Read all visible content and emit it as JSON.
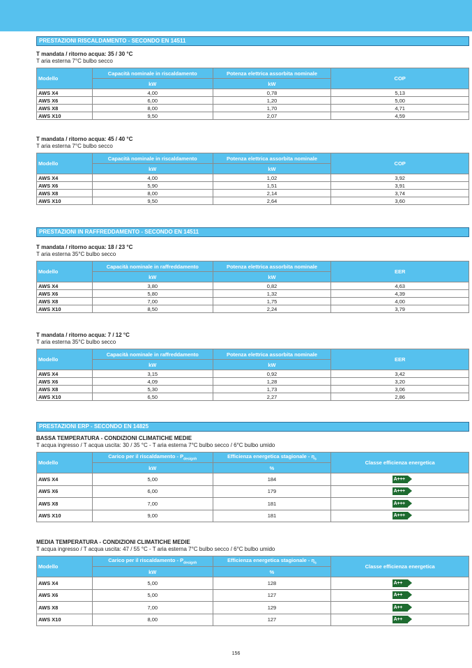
{
  "colors": {
    "accent": "#56c1ee",
    "badge": "#1e6b30"
  },
  "sections": [
    {
      "title": "PRESTAZIONI RISCALDAMENTO - SECONDO EN 14511"
    },
    {
      "title": "PRESTAZIONI IN RAFFREDDAMENTO - SECONDO EN 14511"
    },
    {
      "title": "PRESTAZIONI ERP - SECONDO EN 14825"
    }
  ],
  "tables": [
    {
      "title": "T mandata / ritorno acqua: 35 / 30 °C",
      "subtitle": "T aria esterna 7°C bulbo secco",
      "headers": [
        "Modello",
        "Capacità nominale in riscaldamento",
        "Potenza elettrica assorbita nominale",
        "COP"
      ],
      "units": [
        "kW",
        "kW"
      ],
      "rows": [
        [
          "AWS X4",
          "4,00",
          "0,78",
          "5,13"
        ],
        [
          "AWS X6",
          "6,00",
          "1,20",
          "5,00"
        ],
        [
          "AWS X8",
          "8,00",
          "1,70",
          "4,71"
        ],
        [
          "AWS X10",
          "9,50",
          "2,07",
          "4,59"
        ]
      ]
    },
    {
      "title": "T mandata / ritorno acqua: 45 / 40 °C",
      "subtitle": "T aria esterna 7°C bulbo secco",
      "headers": [
        "Modello",
        "Capacità nominale in riscaldamento",
        "Potenza elettrica assorbita nominale",
        "COP"
      ],
      "units": [
        "kW",
        "kW"
      ],
      "rows": [
        [
          "AWS X4",
          "4,00",
          "1,02",
          "3,92"
        ],
        [
          "AWS X6",
          "5,90",
          "1,51",
          "3,91"
        ],
        [
          "AWS X8",
          "8,00",
          "2,14",
          "3,74"
        ],
        [
          "AWS X10",
          "9,50",
          "2,64",
          "3,60"
        ]
      ]
    },
    {
      "title": "T mandata / ritorno acqua: 18 / 23 °C",
      "subtitle": "T aria esterna 35°C bulbo secco",
      "headers": [
        "Modello",
        "Capacità nominale in raffreddamento",
        "Potenza elettrica assorbita nominale",
        "EER"
      ],
      "units": [
        "kW",
        "kW"
      ],
      "rows": [
        [
          "AWS X4",
          "3,80",
          "0,82",
          "4,63"
        ],
        [
          "AWS X6",
          "5,80",
          "1,32",
          "4,39"
        ],
        [
          "AWS X8",
          "7,00",
          "1,75",
          "4,00"
        ],
        [
          "AWS X10",
          "8,50",
          "2,24",
          "3,79"
        ]
      ]
    },
    {
      "title": "T mandata / ritorno acqua: 7 / 12 °C",
      "subtitle": "T aria esterna 35°C bulbo secco",
      "headers": [
        "Modello",
        "Capacità nominale in raffreddamento",
        "Potenza elettrica assorbita nominale",
        "EER"
      ],
      "units": [
        "kW",
        "kW"
      ],
      "rows": [
        [
          "AWS X4",
          "3,15",
          "0,92",
          "3,42"
        ],
        [
          "AWS X6",
          "4,09",
          "1,28",
          "3,20"
        ],
        [
          "AWS X8",
          "5,30",
          "1,73",
          "3,06"
        ],
        [
          "AWS X10",
          "6,50",
          "2,27",
          "2,86"
        ]
      ]
    },
    {
      "title": "BASSA TEMPERATURA - CONDIZIONI CLIMATICHE MEDIE",
      "subtitle": "T acqua ingresso / T acqua uscita: 30 / 35 °C - T aria esterna 7°C bulbo secco / 6°C bulbo umido",
      "headers": [
        "Modello",
        "Carico per il riscaldamento - Pdesignh",
        "Efficienza energetica stagionale - ηs",
        "Classe efficienza energetica"
      ],
      "units": [
        "kW",
        "%"
      ],
      "rows": [
        [
          "AWS X4",
          "5,00",
          "184",
          "A+++"
        ],
        [
          "AWS X6",
          "6,00",
          "179",
          "A+++"
        ],
        [
          "AWS X8",
          "7,00",
          "181",
          "A+++"
        ],
        [
          "AWS X10",
          "9,00",
          "181",
          "A+++"
        ]
      ]
    },
    {
      "title": "MEDIA TEMPERATURA - CONDIZIONI CLIMATICHE MEDIE",
      "subtitle": "T acqua ingresso / T acqua uscita: 47 / 55 °C - T aria esterna 7°C bulbo secco / 6°C bulbo umido",
      "headers": [
        "Modello",
        "Carico per il riscaldamento - Pdesignh",
        "Efficienza energetica stagionale - ηs",
        "Classe efficienza energetica"
      ],
      "units": [
        "kW",
        "%"
      ],
      "rows": [
        [
          "AWS X4",
          "5,00",
          "128",
          "A++"
        ],
        [
          "AWS X6",
          "5,00",
          "127",
          "A++"
        ],
        [
          "AWS X8",
          "7,00",
          "129",
          "A++"
        ],
        [
          "AWS X10",
          "8,00",
          "127",
          "A++"
        ]
      ]
    }
  ],
  "page_number": "156"
}
